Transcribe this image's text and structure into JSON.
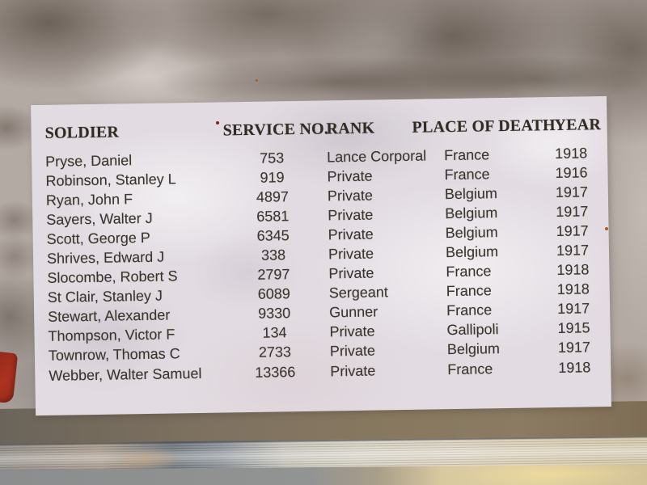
{
  "sign": {
    "columns": [
      "SOLDIER",
      "SERVICE NO.",
      "RANK",
      "PLACE OF DEATH",
      "YEAR"
    ],
    "rows": [
      {
        "soldier": "Pryse, Daniel",
        "service_no": "753",
        "rank": "Lance Corporal",
        "place_of_death": "France",
        "year": "1918"
      },
      {
        "soldier": "Robinson, Stanley L",
        "service_no": "919",
        "rank": "Private",
        "place_of_death": "France",
        "year": "1916"
      },
      {
        "soldier": "Ryan, John F",
        "service_no": "4897",
        "rank": "Private",
        "place_of_death": "Belgium",
        "year": "1917"
      },
      {
        "soldier": "Sayers, Walter J",
        "service_no": "6581",
        "rank": "Private",
        "place_of_death": "Belgium",
        "year": "1917"
      },
      {
        "soldier": "Scott, George P",
        "service_no": "6345",
        "rank": "Private",
        "place_of_death": "Belgium",
        "year": "1917"
      },
      {
        "soldier": "Shrives, Edward J",
        "service_no": "338",
        "rank": "Private",
        "place_of_death": "Belgium",
        "year": "1917"
      },
      {
        "soldier": "Slocombe, Robert S",
        "service_no": "2797",
        "rank": "Private",
        "place_of_death": "France",
        "year": "1918"
      },
      {
        "soldier": "St Clair, Stanley J",
        "service_no": "6089",
        "rank": "Sergeant",
        "place_of_death": "France",
        "year": "1918"
      },
      {
        "soldier": "Stewart, Alexander",
        "service_no": "9330",
        "rank": "Gunner",
        "place_of_death": "France",
        "year": "1917"
      },
      {
        "soldier": "Thompson, Victor F",
        "service_no": "134",
        "rank": "Private",
        "place_of_death": "Gallipoli",
        "year": "1915"
      },
      {
        "soldier": "Townrow, Thomas C",
        "service_no": "2733",
        "rank": "Private",
        "place_of_death": "Belgium",
        "year": "1917"
      },
      {
        "soldier": "Webber, Walter Samuel",
        "service_no": "13366",
        "rank": "Private",
        "place_of_death": "France",
        "year": "1918"
      }
    ]
  },
  "colors": {
    "paper": "#e2dce2",
    "header_text": "#322b24",
    "body_text": "#3a342d",
    "stone_base": "#b4aaa4",
    "stone_shadow": "#564a3e",
    "shadow_band_brown": "#87785f",
    "metal_sill_silver": "#c8c5bb",
    "ledge_cream": "#d9c9a0",
    "red_marker": "#ab321f"
  }
}
